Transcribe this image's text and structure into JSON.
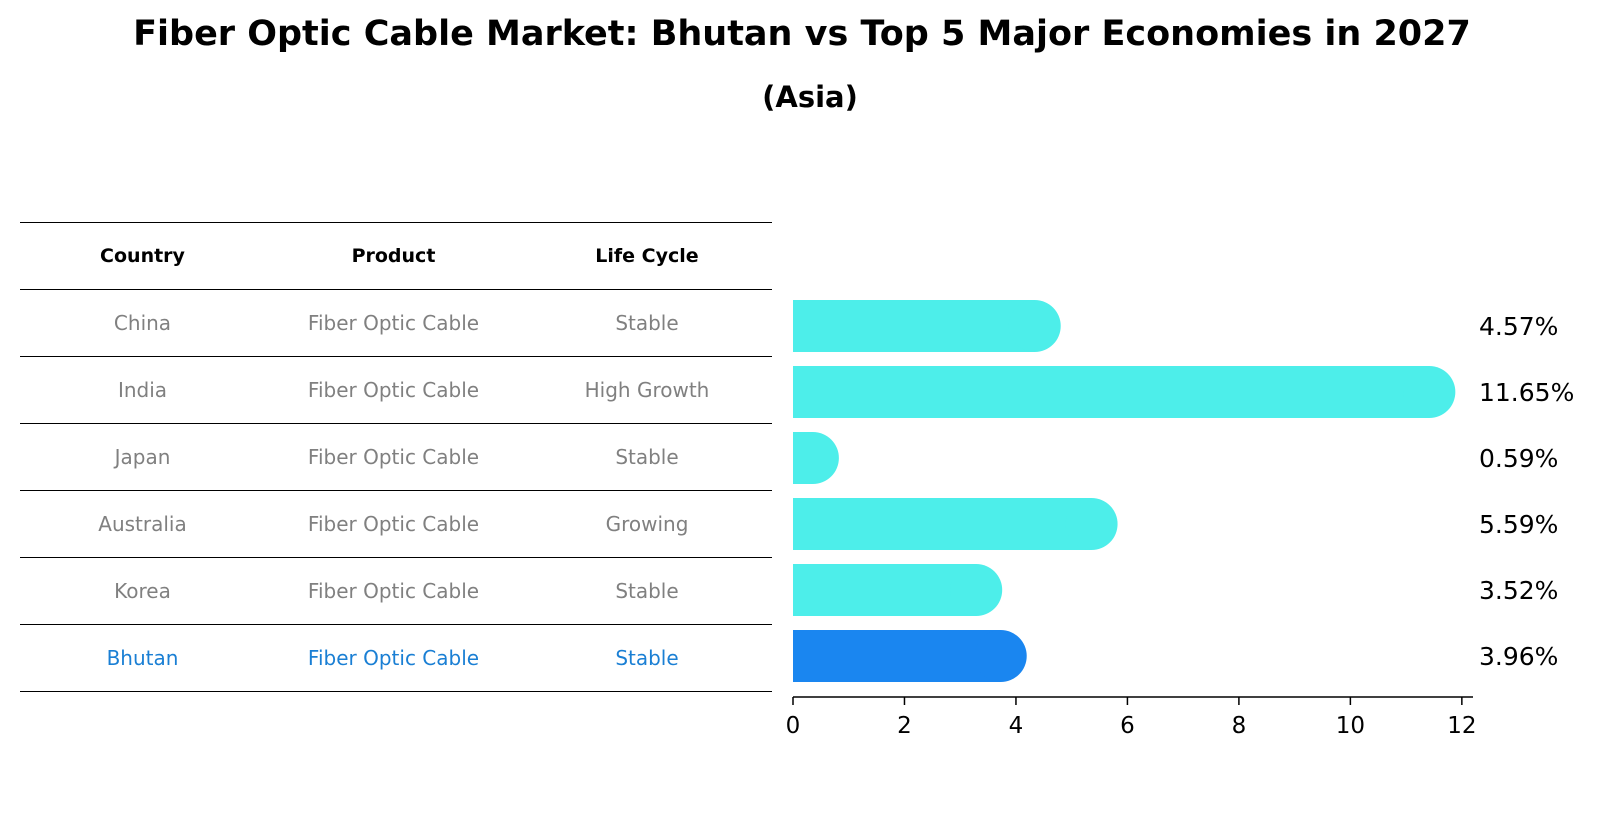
{
  "chart_data": {
    "type": "bar",
    "orientation": "horizontal",
    "title": "Fiber Optic Cable Market: Bhutan vs Top 5 Major Economies in 2027",
    "subtitle": "(Asia)",
    "table": {
      "headers": [
        "Country",
        "Product",
        "Life Cycle"
      ],
      "rows": [
        {
          "country": "China",
          "product": "Fiber Optic Cable",
          "life_cycle": "Stable"
        },
        {
          "country": "India",
          "product": "Fiber Optic Cable",
          "life_cycle": "High Growth"
        },
        {
          "country": "Japan",
          "product": "Fiber Optic Cable",
          "life_cycle": "Stable"
        },
        {
          "country": "Australia",
          "product": "Fiber Optic Cable",
          "life_cycle": "Growing"
        },
        {
          "country": "Korea",
          "product": "Fiber Optic Cable",
          "life_cycle": "Stable"
        },
        {
          "country": "Bhutan",
          "product": "Fiber Optic Cable",
          "life_cycle": "Stable"
        }
      ]
    },
    "categories": [
      "China",
      "India",
      "Japan",
      "Australia",
      "Korea",
      "Bhutan"
    ],
    "values": [
      4.57,
      11.65,
      0.59,
      5.59,
      3.52,
      3.96
    ],
    "value_labels": [
      "4.57%",
      "11.65%",
      "0.59%",
      "5.59%",
      "3.52%",
      "3.96%"
    ],
    "highlight_category": "Bhutan",
    "xlim": [
      0,
      12.2
    ],
    "xticks": [
      0,
      2,
      4,
      6,
      8,
      10,
      12
    ],
    "colors": {
      "bar": "#4deeea",
      "highlight_bar": "#1a86f0",
      "highlight_text": "#1a7fd4",
      "muted_text": "#808080"
    }
  }
}
